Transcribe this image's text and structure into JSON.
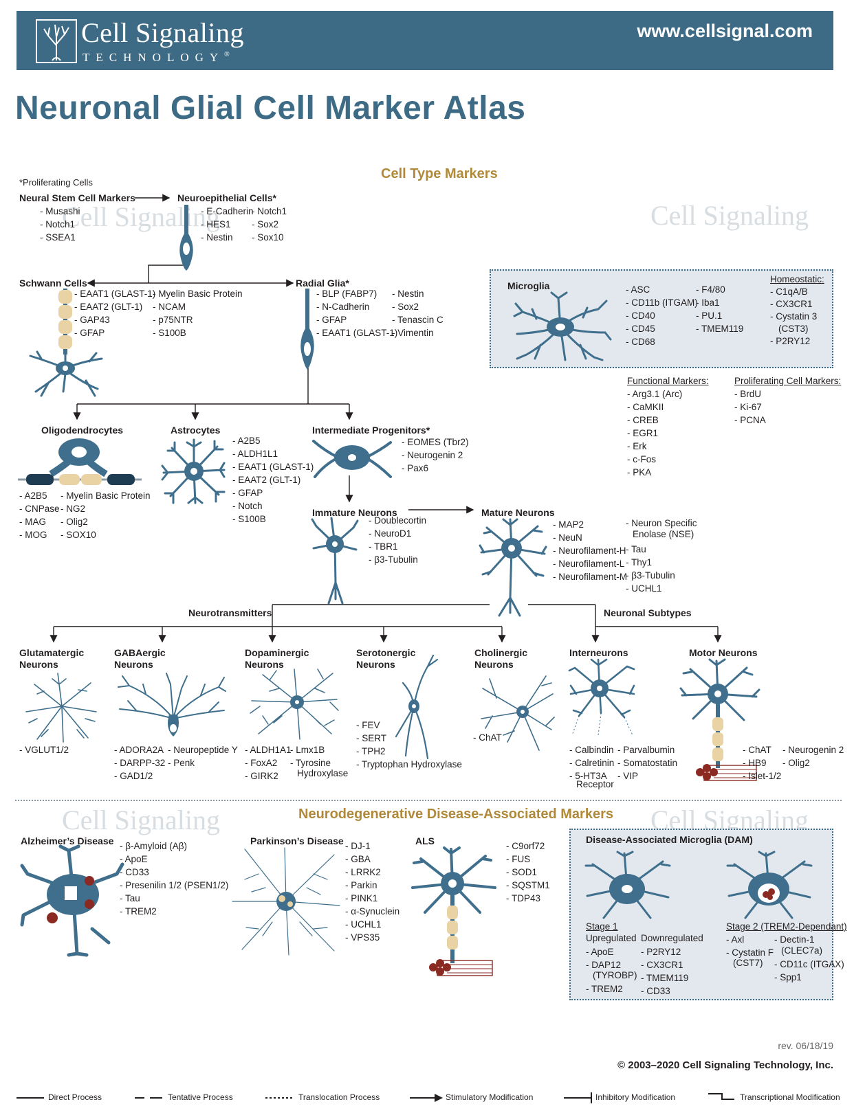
{
  "brand": {
    "name": "Cell Signaling",
    "sub": "TECHNOLOGY",
    "reg": "®",
    "url": "www.cellsignal.com"
  },
  "title": "Neuronal Glial Cell Marker Atlas",
  "cell_type_section": "Cell Type Markers",
  "proliferating_note": "*Proliferating Cells",
  "neural_stem": {
    "title": "Neural Stem Cell Markers",
    "markers": [
      "Musashi",
      "Notch1",
      "SSEA1"
    ]
  },
  "neuroepithelial": {
    "title": "Neuroepithelial Cells*",
    "col1": [
      "E-Cadherin",
      "HES1",
      "Nestin"
    ],
    "col2": [
      "Notch1",
      "Sox2",
      "Sox10"
    ]
  },
  "schwann": {
    "title": "Schwann Cells",
    "col1": [
      "EAAT1 (GLAST-1)",
      "EAAT2 (GLT-1)",
      "GAP43",
      "GFAP"
    ],
    "col2": [
      "Myelin Basic Protein",
      "NCAM",
      "p75NTR",
      "S100B"
    ]
  },
  "radial_glia": {
    "title": "Radial Glia*",
    "col1": [
      "BLP (FABP7)",
      "N-Cadherin",
      "GFAP",
      "EAAT1 (GLAST-1)"
    ],
    "col2": [
      "Nestin",
      "Sox2",
      "Tenascin C",
      "Vimentin"
    ]
  },
  "microglia": {
    "title": "Microglia",
    "col1": [
      "ASC",
      "CD11b (ITGAM)",
      "CD40",
      "CD45",
      "CD68"
    ],
    "col2": [
      "F4/80",
      "Iba1",
      "PU.1",
      "TMEM119"
    ],
    "homeostatic_title": "Homeostatic:",
    "homeostatic": [
      "C1qA/B",
      "CX3CR1",
      "Cystatin 3",
      "P2RY12"
    ],
    "homeostatic_sub": "(CST3)"
  },
  "functional": {
    "title": "Functional Markers:",
    "items": [
      "Arg3.1 (Arc)",
      "CaMKII",
      "CREB",
      "EGR1",
      "Erk",
      "c-Fos",
      "PKA"
    ]
  },
  "proliferating": {
    "title": "Proliferating Cell Markers:",
    "items": [
      "BrdU",
      "Ki-67",
      "PCNA"
    ]
  },
  "oligodendrocytes": {
    "title": "Oligodendrocytes",
    "col1": [
      "A2B5",
      "CNPase",
      "MAG",
      "MOG"
    ],
    "col2": [
      "Myelin Basic Protein",
      "NG2",
      "Olig2",
      "SOX10"
    ]
  },
  "astrocytes": {
    "title": "Astrocytes",
    "items": [
      "A2B5",
      "ALDH1L1",
      "EAAT1 (GLAST-1)",
      "EAAT2 (GLT-1)",
      "GFAP",
      "Notch",
      "S100B"
    ]
  },
  "intermediate": {
    "title": "Intermediate Progenitors*",
    "items": [
      "EOMES (Tbr2)",
      "Neurogenin 2",
      "Pax6"
    ]
  },
  "immature": {
    "title": "Immature Neurons",
    "items": [
      "Doublecortin",
      "NeuroD1",
      "TBR1",
      "β3-Tubulin"
    ]
  },
  "mature": {
    "title": "Mature Neurons",
    "col1": [
      "MAP2",
      "NeuN",
      "Neurofilament-H",
      "Neurofilament-L",
      "Neurofilament-M"
    ],
    "col2a": "Neuron Specific",
    "col2b": "Enolase (NSE)",
    "col2": [
      "Tau",
      "Thy1",
      "β3-Tubulin",
      "UCHL1"
    ]
  },
  "neurotransmitters_label": "Neurotransmitters",
  "subtypes_label": "Neuronal Subtypes",
  "glutamatergic": {
    "t1": "Glutamatergic",
    "t2": "Neurons",
    "items": [
      "VGLUT1/2"
    ]
  },
  "gabaergic": {
    "t1": "GABAergic",
    "t2": "Neurons",
    "col1": [
      "ADORA2A",
      "DARPP-32",
      "GAD1/2"
    ],
    "col2": [
      "Neuropeptide Y",
      "Penk"
    ]
  },
  "dopaminergic": {
    "t1": "Dopaminergic",
    "t2": "Neurons",
    "col1": [
      "ALDH1A1",
      "FoxA2",
      "GIRK2"
    ],
    "col2": [
      "Lmx1B",
      "Tyrosine"
    ],
    "col2_extra": "Hydroxylase"
  },
  "serotonergic": {
    "t1": "Serotonergic",
    "t2": "Neurons",
    "items": [
      "FEV",
      "SERT",
      "TPH2",
      "Tryptophan Hydroxylase"
    ]
  },
  "cholinergic": {
    "t1": "Cholinergic",
    "t2": "Neurons",
    "items": [
      "ChAT"
    ]
  },
  "interneurons": {
    "title": "Interneurons",
    "col1": [
      "Calbindin",
      "Calretinin",
      "5-HT3A"
    ],
    "col1_extra": "Receptor",
    "col2": [
      "Parvalbumin",
      "Somatostatin",
      "VIP"
    ]
  },
  "motor": {
    "title": "Motor Neurons",
    "col1": [
      "ChAT",
      "HB9",
      "Islet-1/2"
    ],
    "col2": [
      "Neurogenin 2",
      "Olig2"
    ]
  },
  "disease_section": "Neurodegenerative Disease-Associated Markers",
  "alzheimers": {
    "title": "Alzheimer’s Disease",
    "items": [
      "β-Amyloid (Aβ)",
      "ApoE",
      "CD33",
      "Presenilin 1/2 (PSEN1/2)",
      "Tau",
      "TREM2"
    ]
  },
  "parkinsons": {
    "title": "Parkinson’s Disease",
    "items": [
      "DJ-1",
      "GBA",
      "LRRK2",
      "Parkin",
      "PINK1",
      "α-Synuclein",
      "UCHL1",
      "VPS35"
    ]
  },
  "als": {
    "title": "ALS",
    "items": [
      "C9orf72",
      "FUS",
      "SOD1",
      "SQSTM1",
      "TDP43"
    ]
  },
  "dam": {
    "title": "Disease-Associated Microglia (DAM)",
    "stage1": "Stage 1",
    "up_title": "Upregulated",
    "up": [
      "ApoE",
      "DAP12",
      "TREM2"
    ],
    "up_extra": "(TYROBP)",
    "down_title": "Downregulated",
    "down": [
      "P2RY12",
      "CX3CR1",
      "TMEM119",
      "CD33"
    ],
    "stage2": "Stage 2 (TREM2-Dependant)",
    "s2col1": [
      "Axl",
      "Cystatin F"
    ],
    "s2col1_extra": "(CST7)",
    "s2col2": [
      "Dectin-1",
      "CD11c (ITGAX)",
      "Spp1"
    ],
    "s2col2_extra": "(CLEC7a)"
  },
  "rev": "rev. 06/18/19",
  "copyright": "© 2003–2020 Cell Signaling Technology, Inc.",
  "legend": [
    "Direct Process",
    "Tentative Process",
    "Translocation Process",
    "Stimulatory Modification",
    "Inhibitory Modification",
    "Transcriptional Modification"
  ],
  "colors": {
    "brand_blue": "#3d6b86",
    "gold": "#b08a3a",
    "cell": "#3f6f8c",
    "myelin": "#e9d3a4",
    "panel": "#e2e8ed",
    "red": "#8b2a22"
  }
}
